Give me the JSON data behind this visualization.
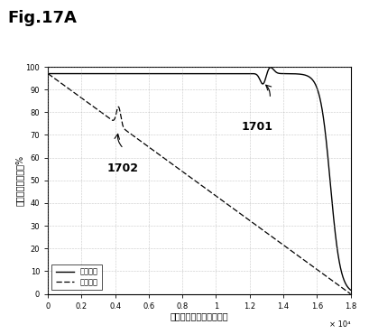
{
  "title": "Fig.17A",
  "xlabel": "立上り時間／立下り時間",
  "ylabel": "コントラスト特性%",
  "xscale_label": "× 10⁴",
  "xlim": [
    0,
    18000.0
  ],
  "ylim": [
    0,
    100
  ],
  "xticks": [
    0,
    2000,
    4000,
    6000,
    8000,
    10000,
    12000,
    14000,
    16000,
    18000
  ],
  "xtick_labels": [
    "0",
    "0.2",
    "0.4",
    "0.6",
    "0.8",
    "1",
    "1.2",
    "1.4",
    "1.6",
    "1.8"
  ],
  "yticks": [
    0,
    10,
    20,
    30,
    40,
    50,
    60,
    70,
    80,
    90,
    100
  ],
  "legend_labels": [
    "補償あり",
    "補償なし"
  ],
  "label_1701": "1701",
  "label_1702": "1702",
  "bg_color": "#ffffff",
  "grid_color": "#999999",
  "line1_color": "#000000",
  "line2_color": "#000000",
  "title_fontsize": 13,
  "tick_fontsize": 6,
  "axis_label_fontsize": 7,
  "annotation_fontsize": 9
}
